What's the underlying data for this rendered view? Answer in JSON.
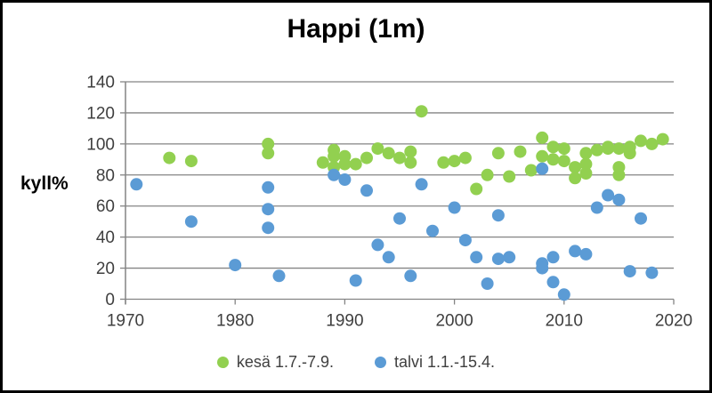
{
  "chart_data": {
    "type": "scatter",
    "title": "Happi (1m)",
    "xlabel": "",
    "ylabel": "kyll%",
    "xlim": [
      1970,
      2020
    ],
    "ylim": [
      0,
      140
    ],
    "xticks": [
      1970,
      1980,
      1990,
      2000,
      2010,
      2020
    ],
    "yticks": [
      0,
      20,
      40,
      60,
      80,
      100,
      120,
      140
    ],
    "grid": "horizontal",
    "legend_position": "bottom",
    "grid_color": "#848484",
    "tick_color": "#3f3f3f",
    "frame_color": "#000000",
    "series": [
      {
        "name": "kesä 1.7.-7.9.",
        "color": "#92D050",
        "points": [
          [
            1974,
            91
          ],
          [
            1976,
            89
          ],
          [
            1983,
            100
          ],
          [
            1983,
            94
          ],
          [
            1988,
            88
          ],
          [
            1989,
            92
          ],
          [
            1989,
            96
          ],
          [
            1989,
            85
          ],
          [
            1990,
            92
          ],
          [
            1990,
            87
          ],
          [
            1991,
            87
          ],
          [
            1992,
            91
          ],
          [
            1993,
            97
          ],
          [
            1994,
            94
          ],
          [
            1995,
            91
          ],
          [
            1996,
            88
          ],
          [
            1996,
            95
          ],
          [
            1997,
            121
          ],
          [
            1999,
            88
          ],
          [
            2000,
            89
          ],
          [
            2001,
            91
          ],
          [
            2002,
            71
          ],
          [
            2003,
            80
          ],
          [
            2004,
            94
          ],
          [
            2005,
            79
          ],
          [
            2006,
            95
          ],
          [
            2007,
            83
          ],
          [
            2008,
            104
          ],
          [
            2008,
            92
          ],
          [
            2009,
            98
          ],
          [
            2009,
            90
          ],
          [
            2010,
            97
          ],
          [
            2010,
            89
          ],
          [
            2011,
            85
          ],
          [
            2011,
            78
          ],
          [
            2012,
            94
          ],
          [
            2012,
            87
          ],
          [
            2012,
            81
          ],
          [
            2013,
            96
          ],
          [
            2014,
            97
          ],
          [
            2014,
            98
          ],
          [
            2015,
            97
          ],
          [
            2015,
            85
          ],
          [
            2015,
            80
          ],
          [
            2016,
            94
          ],
          [
            2016,
            98
          ],
          [
            2017,
            102
          ],
          [
            2018,
            100
          ],
          [
            2019,
            103
          ]
        ]
      },
      {
        "name": "talvi 1.1.-15.4.",
        "color": "#5B9BD5",
        "points": [
          [
            1971,
            74
          ],
          [
            1976,
            50
          ],
          [
            1980,
            22
          ],
          [
            1983,
            72
          ],
          [
            1983,
            58
          ],
          [
            1983,
            46
          ],
          [
            1984,
            15
          ],
          [
            1989,
            80
          ],
          [
            1990,
            77
          ],
          [
            1991,
            12
          ],
          [
            1992,
            70
          ],
          [
            1993,
            35
          ],
          [
            1994,
            27
          ],
          [
            1995,
            52
          ],
          [
            1996,
            15
          ],
          [
            1997,
            74
          ],
          [
            1998,
            44
          ],
          [
            2000,
            59
          ],
          [
            2001,
            38
          ],
          [
            2002,
            27
          ],
          [
            2003,
            10
          ],
          [
            2004,
            54
          ],
          [
            2004,
            26
          ],
          [
            2005,
            27
          ],
          [
            2008,
            84
          ],
          [
            2008,
            23
          ],
          [
            2008,
            20
          ],
          [
            2009,
            27
          ],
          [
            2009,
            11
          ],
          [
            2010,
            3
          ],
          [
            2011,
            31
          ],
          [
            2012,
            29
          ],
          [
            2013,
            59
          ],
          [
            2014,
            67
          ],
          [
            2015,
            64
          ],
          [
            2016,
            18
          ],
          [
            2017,
            52
          ],
          [
            2018,
            17
          ]
        ]
      }
    ]
  }
}
